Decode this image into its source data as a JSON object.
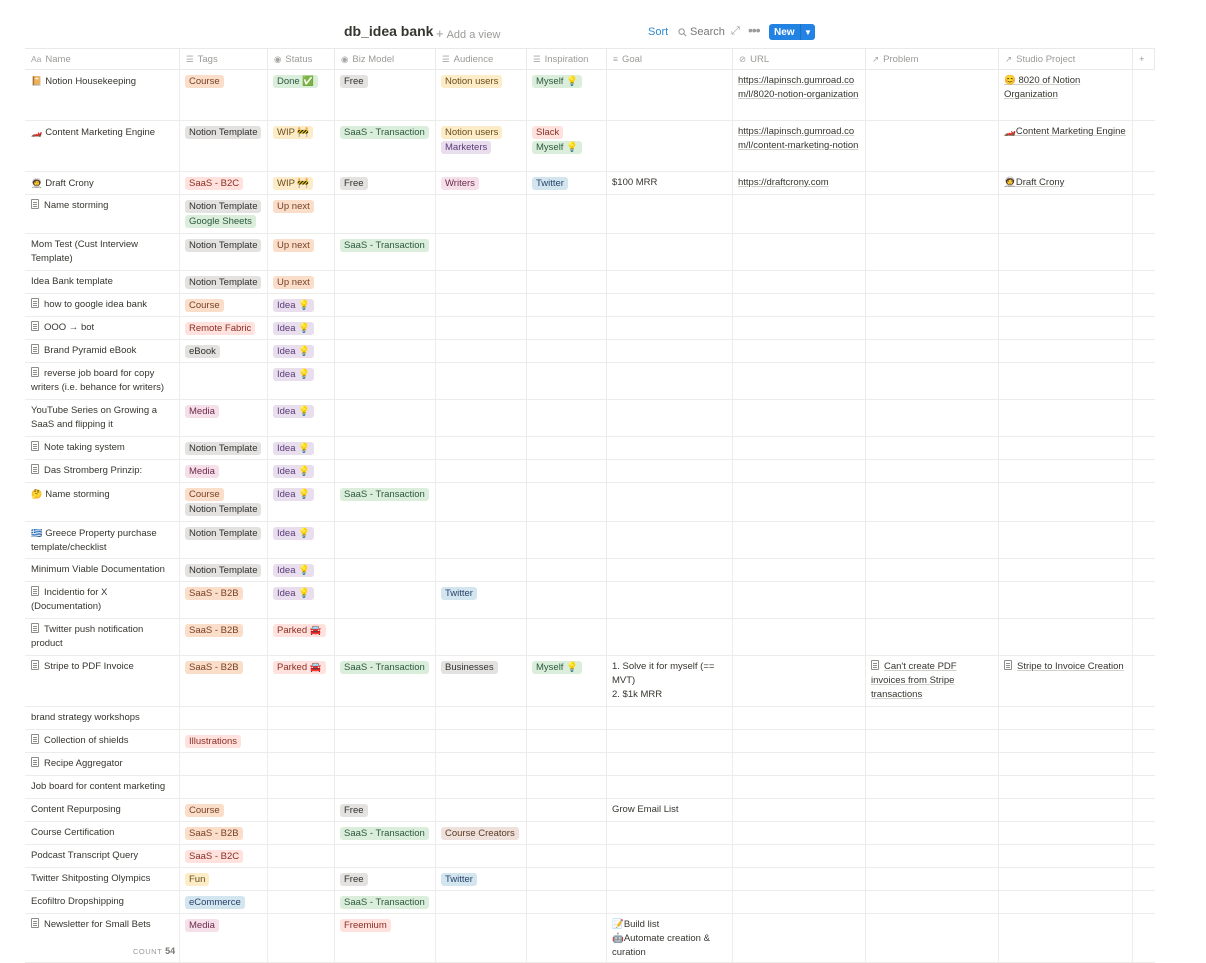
{
  "toolbar": {
    "title": "db_idea bank",
    "add_view": "Add a view",
    "sort": "Sort",
    "search": "Search",
    "new": "New"
  },
  "columns": [
    {
      "label": "Name",
      "icon": "Aa"
    },
    {
      "label": "Tags",
      "icon": "☰"
    },
    {
      "label": "Status",
      "icon": "◉"
    },
    {
      "label": "Biz Model",
      "icon": "◉"
    },
    {
      "label": "Audience",
      "icon": "☰"
    },
    {
      "label": "Inspiration",
      "icon": "☰"
    },
    {
      "label": "Goal",
      "icon": "≡"
    },
    {
      "label": "URL",
      "icon": "⊘"
    },
    {
      "label": "Problem",
      "icon": "↗"
    },
    {
      "label": "Studio Project",
      "icon": "↗"
    },
    {
      "label": "+",
      "icon": ""
    }
  ],
  "tag_colors": {
    "orange": {
      "bg": "#fadec9",
      "fg": "#7a4126"
    },
    "green": {
      "bg": "#dbeddb",
      "fg": "#2b593f"
    },
    "gray": {
      "bg": "#e3e2e0",
      "fg": "#32302c"
    },
    "yellow": {
      "bg": "#fdecc8",
      "fg": "#6b4c1a"
    },
    "purple": {
      "bg": "#e8deee",
      "fg": "#5a3a78"
    },
    "red": {
      "bg": "#ffe2dd",
      "fg": "#8a2e24"
    },
    "blue": {
      "bg": "#d3e5ef",
      "fg": "#28456c"
    },
    "pink": {
      "bg": "#f5e0e9",
      "fg": "#6e2a4b"
    },
    "brown": {
      "bg": "#eee0da",
      "fg": "#5c3b23"
    }
  },
  "rows": [
    {
      "icon": "emoji",
      "emoji": "📔",
      "name": "Notion Housekeeping",
      "h": 50,
      "tags": [
        [
          "Course",
          "orange"
        ]
      ],
      "status": [
        [
          "Done ✅",
          "green"
        ]
      ],
      "biz": [
        [
          "Free",
          "gray"
        ]
      ],
      "audience": [
        [
          "Notion users",
          "yellow"
        ]
      ],
      "inspiration": [
        [
          "Myself 💡",
          "green"
        ]
      ],
      "goal": "",
      "url": "https://lapinsch.gumroad.com/l/8020-notion-organization",
      "problem": "",
      "studio": "😊 8020 of Notion Organization"
    },
    {
      "icon": "emoji",
      "emoji": "🏎️",
      "name": "Content Marketing Engine",
      "h": 50,
      "tags": [
        [
          "Notion Template",
          "gray"
        ]
      ],
      "status": [
        [
          "WIP 🚧",
          "yellow"
        ]
      ],
      "biz": [
        [
          "SaaS - Transaction",
          "green"
        ]
      ],
      "audience": [
        [
          "Notion users",
          "yellow"
        ],
        [
          "Marketers",
          "purple"
        ]
      ],
      "inspiration": [
        [
          "Slack",
          "red"
        ],
        [
          "Myself 💡",
          "green"
        ]
      ],
      "goal": "",
      "url": "https://lapinsch.gumroad.com/l/content-marketing-notion",
      "problem": "",
      "studio": "🏎️Content Marketing Engine"
    },
    {
      "icon": "emoji",
      "emoji": "🧑‍🚀",
      "name": "Draft Crony",
      "h": 22,
      "tags": [
        [
          "SaaS - B2C",
          "red"
        ]
      ],
      "status": [
        [
          "WIP 🚧",
          "yellow"
        ]
      ],
      "biz": [
        [
          "Free",
          "gray"
        ]
      ],
      "audience": [
        [
          "Writers",
          "pink"
        ]
      ],
      "inspiration": [
        [
          "Twitter",
          "blue"
        ]
      ],
      "goal": "$100 MRR",
      "url": "https://draftcrony.com",
      "problem": "",
      "studio": "🧑‍🚀Draft Crony"
    },
    {
      "icon": "doc",
      "name": "Name storming",
      "h": 38,
      "tags": [
        [
          "Notion Template",
          "gray"
        ],
        [
          "Google Sheets",
          "green"
        ]
      ],
      "status": [
        [
          "Up next",
          "orange"
        ]
      ],
      "biz": [],
      "audience": [],
      "inspiration": [],
      "goal": "",
      "url": "",
      "problem": "",
      "studio": ""
    },
    {
      "icon": "none",
      "name": "Mom Test (Cust Interview Template)",
      "h": 36,
      "tags": [
        [
          "Notion Template",
          "gray"
        ]
      ],
      "status": [
        [
          "Up next",
          "orange"
        ]
      ],
      "biz": [
        [
          "SaaS - Transaction",
          "green"
        ]
      ],
      "audience": [],
      "inspiration": [],
      "goal": "",
      "url": "",
      "problem": "",
      "studio": ""
    },
    {
      "icon": "none",
      "name": "Idea Bank template",
      "h": 22,
      "tags": [
        [
          "Notion Template",
          "gray"
        ]
      ],
      "status": [
        [
          "Up next",
          "orange"
        ]
      ],
      "biz": [],
      "audience": [],
      "inspiration": [],
      "goal": "",
      "url": "",
      "problem": "",
      "studio": ""
    },
    {
      "icon": "doc",
      "name": "how to google idea bank",
      "h": 22,
      "tags": [
        [
          "Course",
          "orange"
        ]
      ],
      "status": [
        [
          "Idea 💡",
          "purple"
        ]
      ],
      "biz": [],
      "audience": [],
      "inspiration": [],
      "goal": "",
      "url": "",
      "problem": "",
      "studio": ""
    },
    {
      "icon": "doc",
      "name": "OOO → bot",
      "h": 22,
      "tags": [
        [
          "Remote Fabric",
          "red"
        ]
      ],
      "status": [
        [
          "Idea 💡",
          "purple"
        ]
      ],
      "biz": [],
      "audience": [],
      "inspiration": [],
      "goal": "",
      "url": "",
      "problem": "",
      "studio": ""
    },
    {
      "icon": "doc",
      "name": "Brand Pyramid eBook",
      "h": 22,
      "tags": [
        [
          "eBook",
          "gray"
        ]
      ],
      "status": [
        [
          "Idea 💡",
          "purple"
        ]
      ],
      "biz": [],
      "audience": [],
      "inspiration": [],
      "goal": "",
      "url": "",
      "problem": "",
      "studio": ""
    },
    {
      "icon": "doc",
      "name": "reverse job board for copy writers (i.e. behance for writers)",
      "h": 36,
      "tags": [],
      "status": [
        [
          "Idea 💡",
          "purple"
        ]
      ],
      "biz": [],
      "audience": [],
      "inspiration": [],
      "goal": "",
      "url": "",
      "problem": "",
      "studio": ""
    },
    {
      "icon": "none",
      "name": "YouTube Series on Growing a SaaS and flipping it",
      "h": 36,
      "tags": [
        [
          "Media",
          "pink"
        ]
      ],
      "status": [
        [
          "Idea 💡",
          "purple"
        ]
      ],
      "biz": [],
      "audience": [],
      "inspiration": [],
      "goal": "",
      "url": "",
      "problem": "",
      "studio": ""
    },
    {
      "icon": "doc",
      "name": "Note taking system",
      "h": 22,
      "tags": [
        [
          "Notion Template",
          "gray"
        ]
      ],
      "status": [
        [
          "Idea 💡",
          "purple"
        ]
      ],
      "biz": [],
      "audience": [],
      "inspiration": [],
      "goal": "",
      "url": "",
      "problem": "",
      "studio": ""
    },
    {
      "icon": "doc",
      "name": "Das Stromberg Prinzip:",
      "h": 22,
      "tags": [
        [
          "Media",
          "pink"
        ]
      ],
      "status": [
        [
          "Idea 💡",
          "purple"
        ]
      ],
      "biz": [],
      "audience": [],
      "inspiration": [],
      "goal": "",
      "url": "",
      "problem": "",
      "studio": ""
    },
    {
      "icon": "emoji",
      "emoji": "🤔",
      "name": "Name storming",
      "h": 38,
      "tags": [
        [
          "Course",
          "orange"
        ],
        [
          "Notion Template",
          "gray"
        ]
      ],
      "status": [
        [
          "Idea 💡",
          "purple"
        ]
      ],
      "biz": [
        [
          "SaaS - Transaction",
          "green"
        ]
      ],
      "audience": [],
      "inspiration": [],
      "goal": "",
      "url": "",
      "problem": "",
      "studio": ""
    },
    {
      "icon": "emoji",
      "emoji": "🇬🇷",
      "name": "Greece Property purchase template/checklist",
      "h": 36,
      "tags": [
        [
          "Notion Template",
          "gray"
        ]
      ],
      "status": [
        [
          "Idea 💡",
          "purple"
        ]
      ],
      "biz": [],
      "audience": [],
      "inspiration": [],
      "goal": "",
      "url": "",
      "problem": "",
      "studio": ""
    },
    {
      "icon": "none",
      "name": "Minimum Viable Documentation",
      "h": 22,
      "tags": [
        [
          "Notion Template",
          "gray"
        ]
      ],
      "status": [
        [
          "Idea 💡",
          "purple"
        ]
      ],
      "biz": [],
      "audience": [],
      "inspiration": [],
      "goal": "",
      "url": "",
      "problem": "",
      "studio": ""
    },
    {
      "icon": "doc",
      "name": "Incidentio for X (Documentation)",
      "h": 36,
      "tags": [
        [
          "SaaS - B2B",
          "orange"
        ]
      ],
      "status": [
        [
          "Idea 💡",
          "purple"
        ]
      ],
      "biz": [],
      "audience": [
        [
          "Twitter",
          "blue"
        ]
      ],
      "inspiration": [],
      "goal": "",
      "url": "",
      "problem": "",
      "studio": ""
    },
    {
      "icon": "doc",
      "name": "Twitter push notification product",
      "h": 36,
      "tags": [
        [
          "SaaS - B2B",
          "orange"
        ]
      ],
      "status": [
        [
          "Parked 🚘",
          "red"
        ]
      ],
      "biz": [],
      "audience": [],
      "inspiration": [],
      "goal": "",
      "url": "",
      "problem": "",
      "studio": ""
    },
    {
      "icon": "doc",
      "name": "Stripe to PDF Invoice",
      "h": 50,
      "tags": [
        [
          "SaaS - B2B",
          "orange"
        ]
      ],
      "status": [
        [
          "Parked 🚘",
          "red"
        ]
      ],
      "biz": [
        [
          "SaaS - Transaction",
          "green"
        ]
      ],
      "audience": [
        [
          "Businesses",
          "gray"
        ]
      ],
      "inspiration": [
        [
          "Myself 💡",
          "green"
        ]
      ],
      "goal": "1. Solve it for myself (== MVT)\n2. $1k MRR",
      "url": "",
      "problem": "Can't create PDF invoices from Stripe transactions",
      "studio": "Stripe to Invoice Creation"
    },
    {
      "icon": "none",
      "name": "brand strategy workshops",
      "h": 22,
      "tags": [],
      "status": [],
      "biz": [],
      "audience": [],
      "inspiration": [],
      "goal": "",
      "url": "",
      "problem": "",
      "studio": ""
    },
    {
      "icon": "doc",
      "name": "Collection of shields",
      "h": 22,
      "tags": [
        [
          "Illustrations",
          "red"
        ]
      ],
      "status": [],
      "biz": [],
      "audience": [],
      "inspiration": [],
      "goal": "",
      "url": "",
      "problem": "",
      "studio": ""
    },
    {
      "icon": "doc",
      "name": "Recipe Aggregator",
      "h": 22,
      "tags": [],
      "status": [],
      "biz": [],
      "audience": [],
      "inspiration": [],
      "goal": "",
      "url": "",
      "problem": "",
      "studio": ""
    },
    {
      "icon": "none",
      "name": "Job board for content marketing",
      "h": 22,
      "tags": [],
      "status": [],
      "biz": [],
      "audience": [],
      "inspiration": [],
      "goal": "",
      "url": "",
      "problem": "",
      "studio": ""
    },
    {
      "icon": "none",
      "name": "Content Repurposing",
      "h": 22,
      "tags": [
        [
          "Course",
          "orange"
        ]
      ],
      "status": [],
      "biz": [
        [
          "Free",
          "gray"
        ]
      ],
      "audience": [],
      "inspiration": [],
      "goal": "Grow Email List",
      "url": "",
      "problem": "",
      "studio": ""
    },
    {
      "icon": "none",
      "name": "Course Certification",
      "h": 22,
      "tags": [
        [
          "SaaS - B2B",
          "orange"
        ]
      ],
      "status": [],
      "biz": [
        [
          "SaaS - Transaction",
          "green"
        ]
      ],
      "audience": [
        [
          "Course Creators",
          "brown"
        ]
      ],
      "inspiration": [],
      "goal": "",
      "url": "",
      "problem": "",
      "studio": ""
    },
    {
      "icon": "none",
      "name": "Podcast Transcript Query",
      "h": 22,
      "tags": [
        [
          "SaaS - B2C",
          "red"
        ]
      ],
      "status": [],
      "biz": [],
      "audience": [],
      "inspiration": [],
      "goal": "",
      "url": "",
      "problem": "",
      "studio": ""
    },
    {
      "icon": "none",
      "name": "Twitter Shitposting Olympics",
      "h": 22,
      "tags": [
        [
          "Fun",
          "yellow"
        ]
      ],
      "status": [],
      "biz": [
        [
          "Free",
          "gray"
        ]
      ],
      "audience": [
        [
          "Twitter",
          "blue"
        ]
      ],
      "inspiration": [],
      "goal": "",
      "url": "",
      "problem": "",
      "studio": ""
    },
    {
      "icon": "none",
      "name": "Ecofiltro Dropshipping",
      "h": 22,
      "tags": [
        [
          "eCommerce",
          "blue"
        ]
      ],
      "status": [],
      "biz": [
        [
          "SaaS - Transaction",
          "green"
        ]
      ],
      "audience": [],
      "inspiration": [],
      "goal": "",
      "url": "",
      "problem": "",
      "studio": ""
    },
    {
      "icon": "doc",
      "name": "Newsletter for Small Bets",
      "h": 48,
      "tags": [
        [
          "Media",
          "pink"
        ]
      ],
      "status": [],
      "biz": [
        [
          "Freemium",
          "red"
        ]
      ],
      "audience": [],
      "inspiration": [],
      "goal": "📝Build list\n🤖Automate creation & curation",
      "url": "",
      "problem": "",
      "studio": ""
    }
  ],
  "footer": {
    "count_label": "COUNT",
    "count_value": "54"
  }
}
